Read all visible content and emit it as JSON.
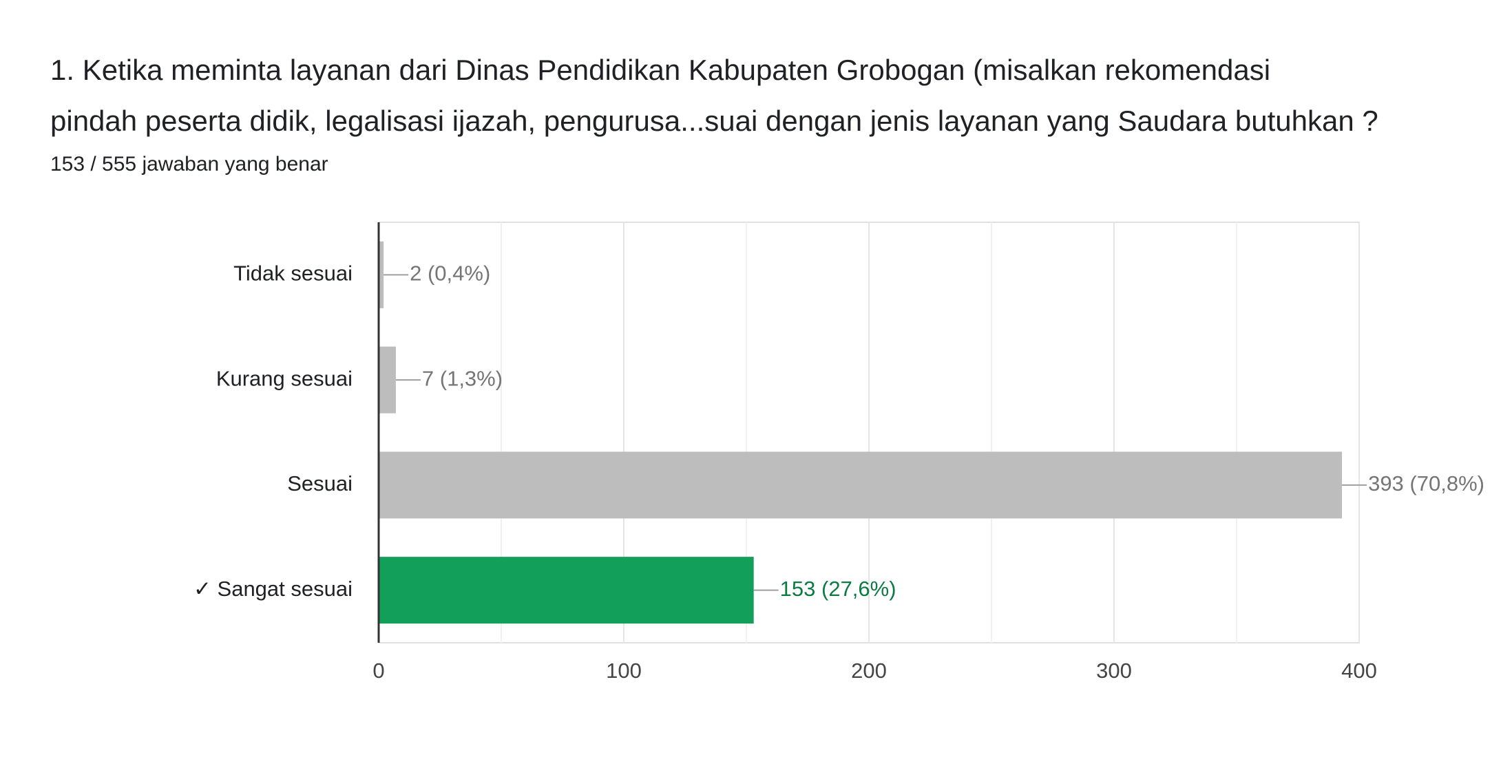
{
  "chart_data": {
    "type": "bar",
    "orientation": "horizontal",
    "title": [
      "1. Ketika meminta layanan dari Dinas Pendidikan Kabupaten Grobogan (misalkan rekomendasi",
      "pindah peserta didik, legalisasi ijazah, pengurusa...suai dengan jenis layanan yang Saudara butuhkan ?"
    ],
    "subtitle": "153 / 555 jawaban yang benar",
    "categories": [
      "Tidak sesuai",
      "Kurang sesuai",
      "Sesuai",
      "✓ Sangat sesuai"
    ],
    "values": [
      2,
      7,
      393,
      153
    ],
    "value_labels": [
      "2 (0,4%)",
      "7 (1,3%)",
      "393 (70,8%)",
      "153 (27,6%)"
    ],
    "colors": [
      "#bdbdbd",
      "#bdbdbd",
      "#bdbdbd",
      "#129f59"
    ],
    "label_colors": [
      "#757575",
      "#757575",
      "#757575",
      "#0b7a43"
    ],
    "xlim": [
      0,
      400
    ],
    "xticks": [
      0,
      100,
      200,
      300,
      400
    ],
    "minor_xticks": [
      50,
      150,
      250,
      350
    ],
    "grid": true
  }
}
